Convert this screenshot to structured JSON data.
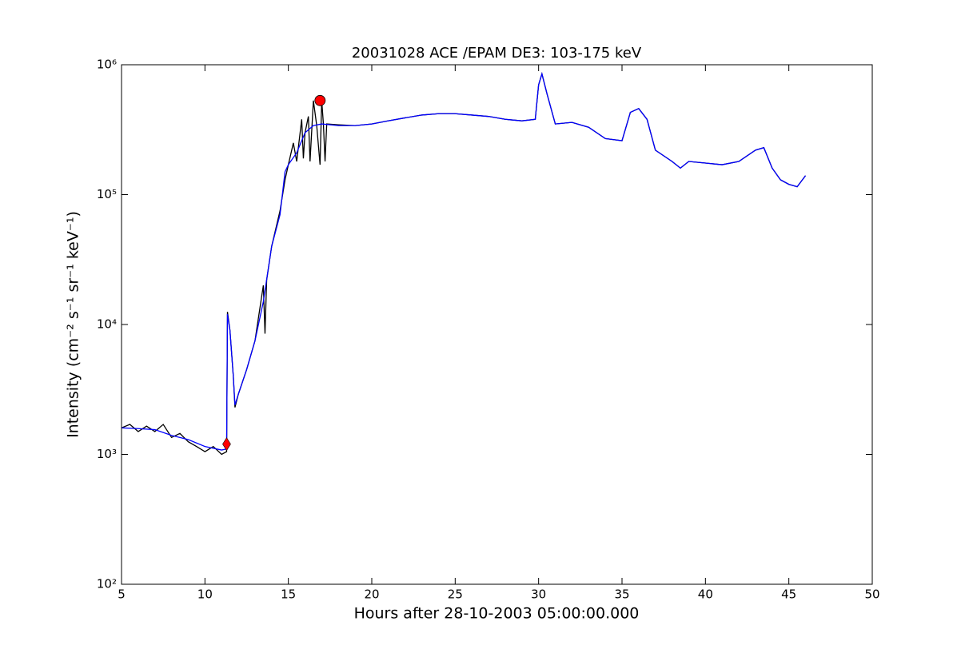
{
  "chart_data": {
    "type": "line",
    "title": "20031028 ACE /EPAM DE3: 103-175 keV",
    "xlabel": "Hours after 28-10-2003 05:00:00.000",
    "ylabel": "Intensity (cm⁻² s⁻¹ sr⁻¹ keV⁻¹)",
    "log_y": true,
    "xlim": [
      5,
      50
    ],
    "xticks": [
      5,
      10,
      15,
      20,
      25,
      30,
      35,
      40,
      45,
      50
    ],
    "ylim": [
      100,
      1000000
    ],
    "yticks": [
      {
        "value": 100,
        "label": "10²"
      },
      {
        "value": 1000,
        "label": "10³"
      },
      {
        "value": 10000,
        "label": "10⁴"
      },
      {
        "value": 100000,
        "label": "10⁵"
      },
      {
        "value": 1000000,
        "label": "10⁶"
      }
    ],
    "series": [
      {
        "color": "#000000",
        "x": [
          5,
          5.5,
          6,
          6.5,
          7,
          7.5,
          8,
          8.5,
          9,
          9.5,
          10,
          10.5,
          11,
          11.3,
          11.35,
          11.5,
          11.7,
          11.8,
          12,
          12.5,
          13,
          13.5,
          13.6,
          13.7,
          14,
          14.5,
          14.8,
          15,
          15.3,
          15.5,
          15.8,
          15.9,
          16,
          16.2,
          16.3,
          16.5,
          16.7,
          16.9,
          17,
          17.1,
          17.2,
          17.3,
          18,
          19,
          20,
          21,
          22,
          23,
          24,
          25,
          26,
          27,
          28,
          29,
          29.8,
          30,
          30.2,
          30.5,
          31,
          32,
          33,
          34,
          35,
          35.5,
          36,
          36.5,
          37,
          38,
          38.5,
          39,
          40,
          41,
          42,
          43,
          43.5,
          44,
          44.5,
          45,
          45.5,
          46
        ],
        "values": [
          1600,
          1700,
          1500,
          1650,
          1500,
          1700,
          1350,
          1450,
          1250,
          1150,
          1050,
          1150,
          1000,
          1050,
          12500,
          9000,
          4000,
          2300,
          2900,
          4500,
          7500,
          20000,
          8500,
          22000,
          40000,
          75000,
          130000,
          170000,
          250000,
          180000,
          380000,
          190000,
          300000,
          400000,
          180000,
          530000,
          340000,
          170000,
          530000,
          350000,
          180000,
          350000,
          345000,
          340000,
          350000,
          370000,
          390000,
          410000,
          420000,
          420000,
          410000,
          400000,
          380000,
          370000,
          380000,
          700000,
          850000,
          600000,
          350000,
          360000,
          330000,
          270000,
          260000,
          430000,
          460000,
          380000,
          220000,
          180000,
          160000,
          180000,
          175000,
          170000,
          180000,
          220000,
          230000,
          160000,
          130000,
          120000,
          115000,
          140000
        ]
      },
      {
        "color": "#0000ff",
        "x": [
          5,
          6,
          7,
          8,
          9,
          10,
          11,
          11.3,
          11.35,
          11.5,
          11.7,
          11.8,
          12,
          12.5,
          13,
          13.5,
          14,
          14.5,
          14.8,
          15,
          15.5,
          16,
          16.5,
          17,
          18,
          19,
          20,
          21,
          22,
          23,
          24,
          25,
          26,
          27,
          28,
          29,
          29.8,
          30,
          30.2,
          30.5,
          31,
          32,
          33,
          34,
          35,
          35.5,
          36,
          36.5,
          37,
          38,
          38.5,
          39,
          40,
          41,
          42,
          43,
          43.5,
          44,
          44.5,
          45,
          45.5,
          46
        ],
        "values": [
          1600,
          1580,
          1550,
          1400,
          1300,
          1150,
          1080,
          1100,
          12000,
          9000,
          4000,
          2400,
          2900,
          4500,
          7500,
          15000,
          40000,
          70000,
          150000,
          170000,
          210000,
          300000,
          340000,
          350000,
          340000,
          340000,
          350000,
          370000,
          390000,
          410000,
          420000,
          420000,
          410000,
          400000,
          380000,
          370000,
          380000,
          700000,
          850000,
          600000,
          350000,
          360000,
          330000,
          270000,
          260000,
          430000,
          460000,
          380000,
          220000,
          180000,
          160000,
          180000,
          175000,
          170000,
          180000,
          220000,
          230000,
          160000,
          130000,
          120000,
          115000,
          140000
        ]
      }
    ],
    "points": [
      {
        "x": 11.3,
        "y": 1200,
        "marker": "diamond",
        "color": "#ff0000"
      },
      {
        "x": 16.9,
        "y": 530000,
        "marker": "circle",
        "color": "#ff0000"
      }
    ]
  }
}
